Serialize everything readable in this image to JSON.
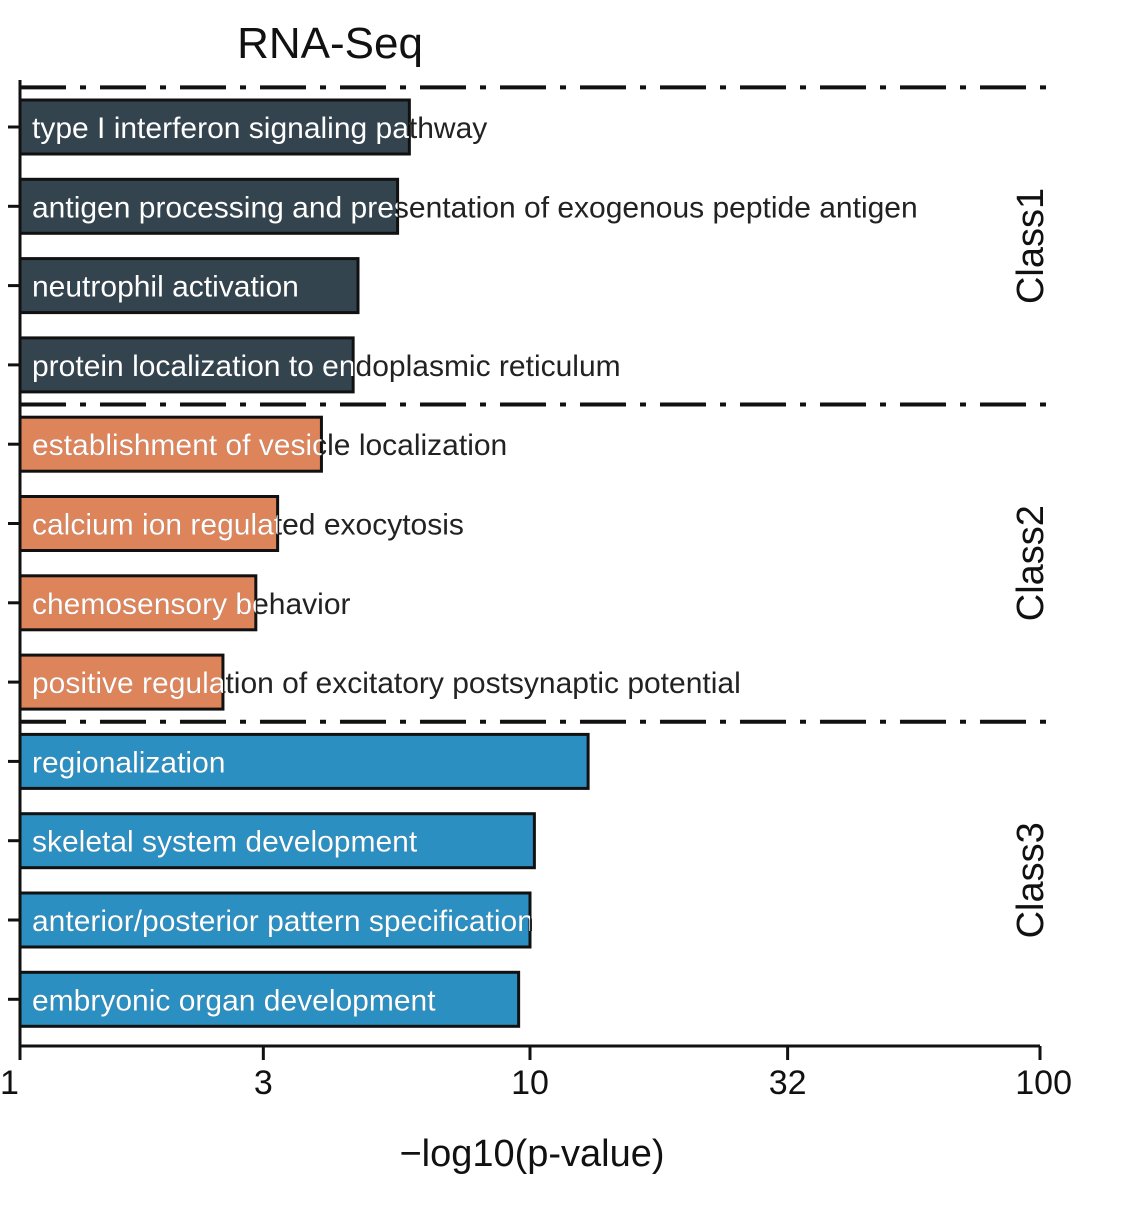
{
  "chart_data": {
    "type": "bar",
    "orientation": "horizontal",
    "title": "RNA-Seq",
    "xlabel": "−log10(p-value)",
    "xscale": "log",
    "xlim": [
      1,
      100
    ],
    "xticks": [
      1,
      3,
      10,
      32,
      100
    ],
    "xtick_labels": [
      "1",
      "3",
      "10",
      "32",
      "100"
    ],
    "grid": false,
    "groups": [
      {
        "name": "Class1",
        "color": "#34444f",
        "bars": [
          {
            "label": "type I interferon signaling pathway",
            "value": 5.8
          },
          {
            "label": "antigen processing and presentation of exogenous peptide antigen",
            "value": 5.5
          },
          {
            "label": "neutrophil activation",
            "value": 4.6
          },
          {
            "label": "protein localization to endoplasmic reticulum",
            "value": 4.5
          }
        ]
      },
      {
        "name": "Class2",
        "color": "#dd845a",
        "bars": [
          {
            "label": "establishment of vesicle localization",
            "value": 3.9
          },
          {
            "label": "calcium ion regulated exocytosis",
            "value": 3.2
          },
          {
            "label": "chemosensory behavior",
            "value": 2.9
          },
          {
            "label": "positive regulation of excitatory postsynaptic potential",
            "value": 2.5
          }
        ]
      },
      {
        "name": "Class3",
        "color": "#2b8fc2",
        "bars": [
          {
            "label": "regionalization",
            "value": 13.0
          },
          {
            "label": "skeletal system development",
            "value": 10.2
          },
          {
            "label": "anterior/posterior pattern specification",
            "value": 10.0
          },
          {
            "label": "embryonic organ development",
            "value": 9.5
          }
        ]
      }
    ]
  }
}
